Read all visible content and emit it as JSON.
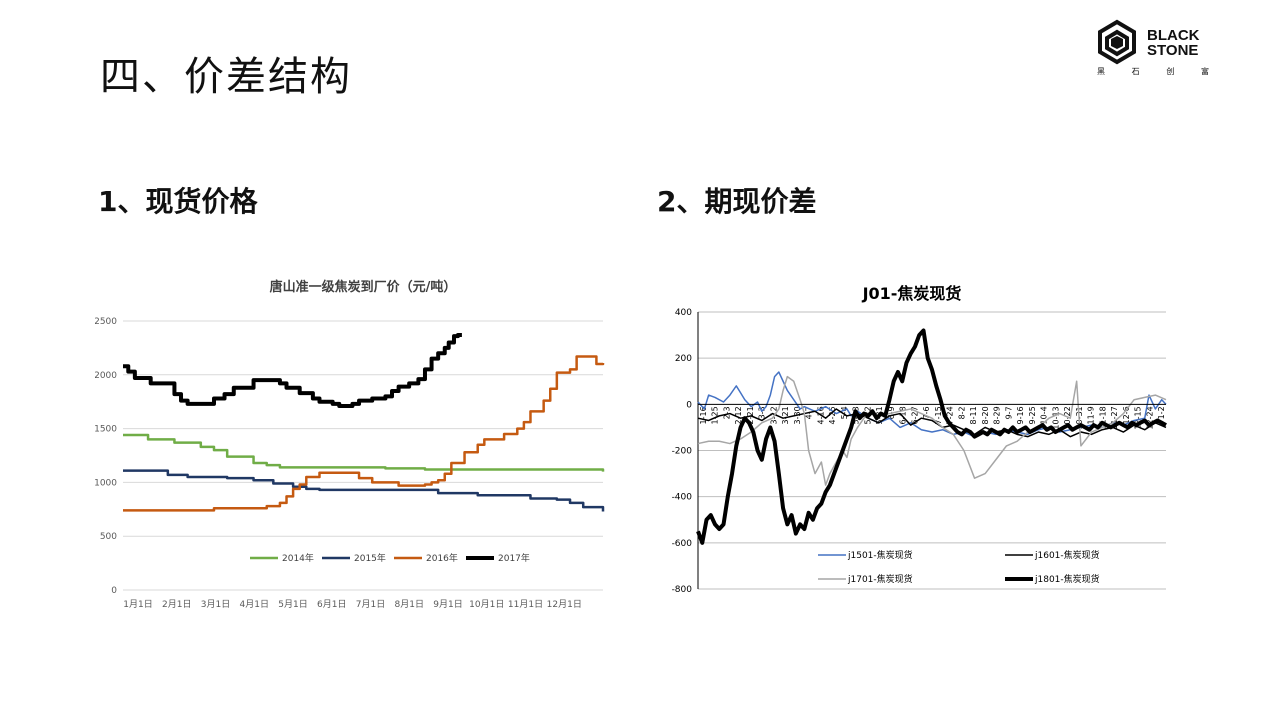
{
  "slide": {
    "title": "四、价差结构",
    "logo": {
      "line1": "BLACK",
      "line2": "STONE",
      "sub": [
        "黑",
        "石",
        "创",
        "富"
      ]
    },
    "sections": [
      "1、现货价格",
      "2、期现价差"
    ]
  },
  "chart_data": [
    {
      "type": "line",
      "title": "唐山准一级焦炭到厂价（元/吨）",
      "x_ticks": [
        "1月1日",
        "2月1日",
        "3月1日",
        "4月1日",
        "5月1日",
        "6月1日",
        "7月1日",
        "8月1日",
        "9月1日",
        "10月1日",
        "11月1日",
        "12月1日"
      ],
      "ylim": [
        0,
        2500
      ],
      "y_ticks": [
        0,
        500,
        1000,
        1500,
        2000,
        2500
      ],
      "grid": true,
      "legend": "bottom",
      "series": [
        {
          "name": "2014年",
          "color": "#70ad47",
          "width": 2.5,
          "x": [
            1,
            10,
            20,
            40,
            60,
            70,
            80,
            100,
            110,
            120,
            150,
            180,
            200,
            230,
            260,
            300,
            340,
            364,
            365
          ],
          "y": [
            1440,
            1440,
            1400,
            1370,
            1330,
            1300,
            1240,
            1180,
            1160,
            1140,
            1140,
            1140,
            1130,
            1120,
            1120,
            1120,
            1120,
            1120,
            1100
          ]
        },
        {
          "name": "2015年",
          "color": "#203864",
          "width": 2.5,
          "x": [
            1,
            20,
            35,
            50,
            80,
            100,
            115,
            130,
            140,
            150,
            180,
            220,
            240,
            270,
            300,
            310,
            330,
            340,
            350,
            365
          ],
          "y": [
            1110,
            1110,
            1070,
            1050,
            1040,
            1020,
            990,
            960,
            940,
            930,
            930,
            930,
            900,
            880,
            880,
            850,
            840,
            810,
            770,
            730
          ]
        },
        {
          "name": "2016年",
          "color": "#c55a11",
          "width": 2.5,
          "x": [
            1,
            60,
            70,
            100,
            110,
            120,
            125,
            130,
            135,
            140,
            150,
            170,
            180,
            190,
            210,
            220,
            230,
            235,
            240,
            245,
            250,
            260,
            270,
            275,
            280,
            290,
            300,
            305,
            310,
            320,
            325,
            330,
            340,
            345,
            350,
            360,
            365
          ],
          "y": [
            740,
            740,
            760,
            760,
            780,
            810,
            870,
            940,
            980,
            1050,
            1090,
            1090,
            1040,
            1000,
            970,
            970,
            980,
            1000,
            1020,
            1080,
            1180,
            1280,
            1350,
            1400,
            1400,
            1450,
            1500,
            1560,
            1660,
            1760,
            1870,
            2020,
            2050,
            2170,
            2170,
            2100,
            2110
          ]
        },
        {
          "name": "2017年",
          "color": "#000000",
          "width": 4,
          "x": [
            1,
            5,
            10,
            15,
            22,
            30,
            40,
            45,
            50,
            60,
            70,
            78,
            85,
            100,
            110,
            120,
            125,
            135,
            145,
            150,
            160,
            165,
            170,
            175,
            180,
            190,
            200,
            205,
            210,
            218,
            225,
            230,
            235,
            240,
            245,
            248,
            252,
            255,
            258
          ],
          "y": [
            2080,
            2030,
            1970,
            1970,
            1920,
            1920,
            1820,
            1760,
            1730,
            1730,
            1780,
            1820,
            1880,
            1950,
            1950,
            1920,
            1880,
            1830,
            1780,
            1750,
            1730,
            1710,
            1710,
            1730,
            1760,
            1780,
            1800,
            1850,
            1890,
            1920,
            1960,
            2050,
            2150,
            2200,
            2250,
            2300,
            2360,
            2370,
            2370
          ]
        }
      ]
    },
    {
      "type": "line",
      "title": "J01-焦炭现货",
      "ylim": [
        -800,
        400
      ],
      "y_ticks": [
        -800,
        -600,
        -400,
        -200,
        0,
        200,
        400
      ],
      "x_tick_labels": [
        "1-16",
        "1-25",
        "2-3",
        "2-12",
        "2-21",
        "3-3",
        "3-12",
        "3-21",
        "3-30",
        "4-7",
        "4-16",
        "4-25",
        "5-4",
        "5-13",
        "5-22",
        "5-31",
        "6-9",
        "6-18",
        "6-27",
        "7-6",
        "7-15",
        "7-24",
        "8-2",
        "8-11",
        "8-20",
        "8-29",
        "9-7",
        "9-16",
        "9-25",
        "10-4",
        "10-13",
        "10-22",
        "10-31",
        "11-9",
        "11-18",
        "11-27",
        "12-6",
        "12-15",
        "12-24",
        "1-2"
      ],
      "grid": true,
      "legend": "bottom",
      "series": [
        {
          "name": "j1501-焦炭现货",
          "color": "#4472c4",
          "width": 1.5,
          "x": [
            0,
            3,
            5,
            8,
            12,
            15,
            18,
            20,
            22,
            25,
            28,
            30,
            32,
            34,
            36,
            38,
            40,
            42,
            45,
            48,
            50,
            55,
            60,
            65,
            70,
            72,
            75,
            80,
            85,
            90,
            95,
            100,
            105,
            110,
            115,
            120,
            125,
            130,
            135,
            140,
            145,
            150,
            155,
            160,
            165,
            170,
            175,
            180,
            185,
            190,
            195,
            200,
            205,
            210,
            212,
            215,
            218,
            220
          ],
          "y": [
            10,
            -20,
            40,
            30,
            10,
            40,
            80,
            50,
            20,
            -10,
            10,
            -30,
            -10,
            40,
            120,
            140,
            100,
            60,
            20,
            -20,
            -10,
            -30,
            -10,
            -40,
            -20,
            -50,
            -30,
            -60,
            -80,
            -60,
            -100,
            -80,
            -110,
            -120,
            -110,
            -130,
            -120,
            -140,
            -120,
            -130,
            -110,
            -120,
            -130,
            -110,
            -100,
            -120,
            -110,
            -100,
            -90,
            -100,
            -80,
            -90,
            -70,
            -60,
            40,
            -20,
            20,
            0
          ]
        },
        {
          "name": "j1601-焦炭现货",
          "color": "#000000",
          "width": 1.5,
          "x": [
            0,
            5,
            10,
            15,
            20,
            25,
            30,
            35,
            40,
            45,
            50,
            55,
            60,
            65,
            70,
            75,
            80,
            85,
            90,
            95,
            100,
            105,
            110,
            115,
            120,
            125,
            130,
            135,
            140,
            145,
            150,
            155,
            160,
            165,
            170,
            175,
            180,
            185,
            190,
            195,
            200,
            205,
            210,
            215,
            220
          ],
          "y": [
            -60,
            -70,
            -50,
            -40,
            -60,
            -50,
            -70,
            -40,
            -60,
            -50,
            -40,
            -30,
            -60,
            -20,
            -50,
            -40,
            -60,
            -80,
            -50,
            -40,
            -90,
            -60,
            -70,
            -100,
            -90,
            -110,
            -130,
            -100,
            -120,
            -110,
            -130,
            -140,
            -120,
            -130,
            -110,
            -140,
            -120,
            -130,
            -110,
            -100,
            -120,
            -90,
            -110,
            -80,
            -100
          ]
        },
        {
          "name": "j1701-焦炭现货",
          "color": "#a6a6a6",
          "width": 1.5,
          "x": [
            0,
            5,
            10,
            15,
            20,
            25,
            30,
            35,
            38,
            40,
            42,
            45,
            48,
            50,
            52,
            55,
            58,
            60,
            62,
            65,
            68,
            70,
            72,
            75,
            78,
            80,
            85,
            90,
            95,
            100,
            105,
            110,
            115,
            120,
            125,
            130,
            135,
            140,
            145,
            150,
            155,
            160,
            165,
            170,
            175,
            178,
            180,
            185,
            190,
            195,
            200,
            205,
            210,
            215,
            220
          ],
          "y": [
            -170,
            -160,
            -160,
            -170,
            -150,
            -120,
            -80,
            -60,
            -20,
            60,
            120,
            100,
            20,
            -40,
            -200,
            -300,
            -250,
            -350,
            -300,
            -250,
            -200,
            -230,
            -150,
            -100,
            -60,
            -40,
            -50,
            -40,
            -30,
            -20,
            -40,
            -60,
            -100,
            -130,
            -200,
            -320,
            -300,
            -240,
            -180,
            -160,
            -120,
            -100,
            -60,
            -40,
            -60,
            100,
            -180,
            -120,
            -100,
            -80,
            -40,
            20,
            30,
            40,
            20
          ]
        },
        {
          "name": "j1801-焦炭现货",
          "color": "#000000",
          "width": 4,
          "x": [
            0,
            2,
            4,
            6,
            8,
            10,
            12,
            14,
            16,
            18,
            20,
            22,
            24,
            26,
            28,
            30,
            32,
            34,
            36,
            38,
            40,
            42,
            44,
            46,
            48,
            50,
            52,
            54,
            56,
            58,
            60,
            62,
            64,
            66,
            68,
            70,
            72,
            74,
            76,
            78,
            80,
            82,
            84,
            86,
            88,
            90,
            92,
            94,
            96,
            98,
            100,
            102,
            104,
            106,
            108,
            110,
            112,
            114,
            116,
            118,
            120,
            122,
            124,
            126,
            128,
            130,
            132,
            134,
            136,
            138,
            140,
            142,
            144,
            146,
            148,
            150,
            152,
            154,
            156,
            158,
            160,
            162,
            164,
            166,
            168,
            170,
            172,
            174,
            176,
            178,
            180,
            182,
            184,
            186,
            188,
            190,
            192,
            194,
            196,
            198,
            200,
            202,
            204,
            206,
            208,
            210,
            212,
            214,
            216,
            218,
            220
          ],
          "y": [
            -550,
            -600,
            -500,
            -480,
            -520,
            -540,
            -520,
            -400,
            -300,
            -180,
            -100,
            -60,
            -80,
            -120,
            -200,
            -240,
            -150,
            -100,
            -160,
            -300,
            -450,
            -520,
            -480,
            -560,
            -520,
            -540,
            -470,
            -500,
            -450,
            -430,
            -380,
            -350,
            -300,
            -250,
            -200,
            -150,
            -100,
            -30,
            -60,
            -40,
            -50,
            -30,
            -60,
            -40,
            -50,
            20,
            100,
            140,
            100,
            180,
            220,
            250,
            300,
            320,
            200,
            150,
            80,
            20,
            -50,
            -80,
            -100,
            -120,
            -130,
            -110,
            -120,
            -140,
            -130,
            -120,
            -130,
            -110,
            -120,
            -130,
            -110,
            -120,
            -100,
            -120,
            -110,
            -100,
            -120,
            -110,
            -100,
            -90,
            -110,
            -100,
            -120,
            -110,
            -100,
            -90,
            -110,
            -100,
            -90,
            -100,
            -110,
            -90,
            -100,
            -80,
            -90,
            -100,
            -90,
            -80,
            -90,
            -100,
            -80,
            -90,
            -80,
            -70,
            -90,
            -80,
            -70,
            -80,
            -90
          ]
        }
      ]
    }
  ]
}
